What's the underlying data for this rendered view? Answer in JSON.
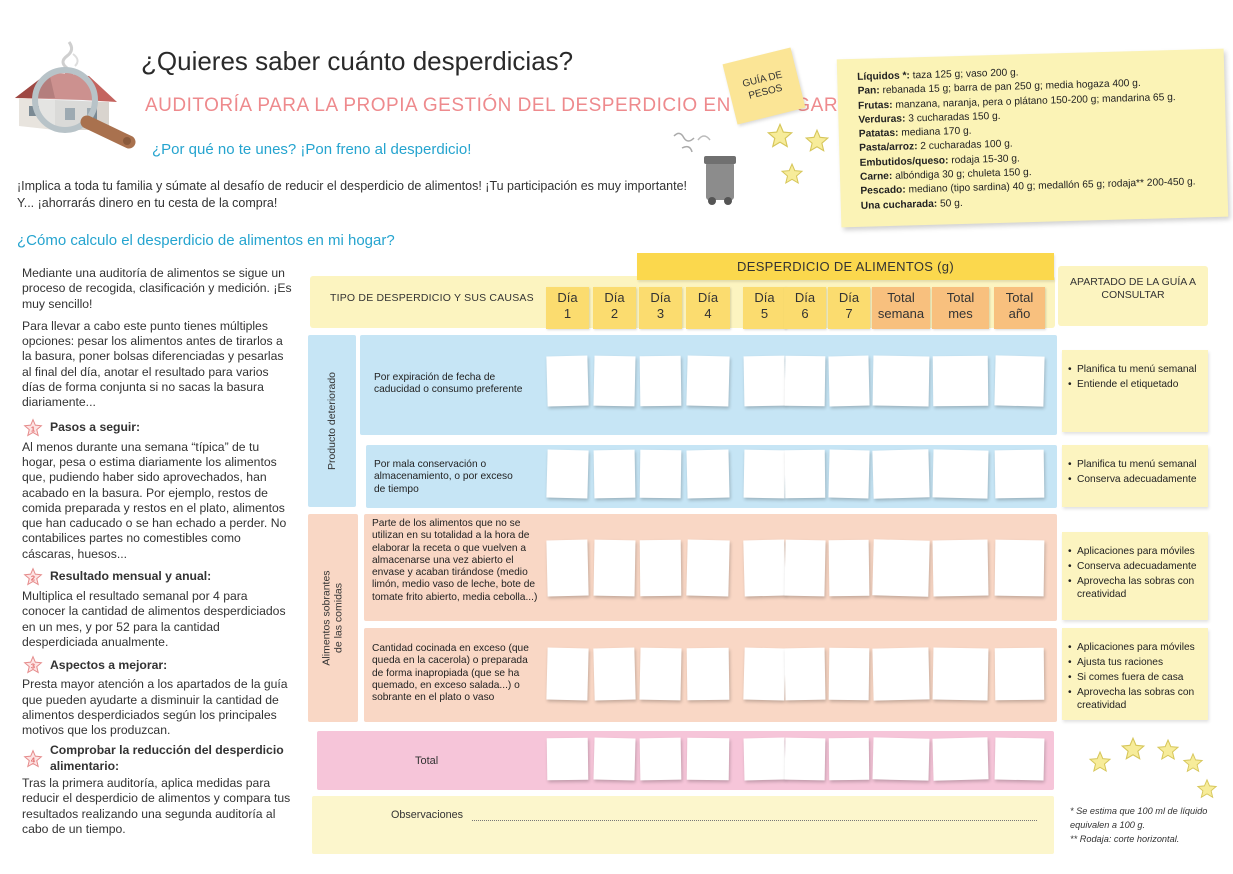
{
  "header": {
    "title": "¿Quieres saber cuánto desperdicias?",
    "subtitle": "AUDITORÍA PARA LA PROPIA GESTIÓN DEL DESPERDICIO EN EL HOGAR",
    "why": "¿Por qué no te unes? ¡Pon freno al desperdicio!",
    "intro_line1": "¡Implica a toda tu familia y súmate al desafío de reducir el desperdicio de alimentos! ¡Tu participación es muy importante!",
    "intro_line2": "Y... ¡ahorrarás dinero en tu cesta de la compra!",
    "how": "¿Cómo calculo el desperdicio de alimentos en mi hogar?"
  },
  "guia_tag": {
    "line1": "GUÍA DE",
    "line2": "PESOS"
  },
  "pesos": [
    {
      "label": "Líquidos *:",
      "text": " taza 125 g; vaso 200 g."
    },
    {
      "label": "Pan:",
      "text": " rebanada 15 g; barra de pan 250 g; media hogaza 400 g."
    },
    {
      "label": "Frutas:",
      "text": " manzana, naranja, pera o plátano 150-200 g; mandarina 65 g."
    },
    {
      "label": "Verduras:",
      "text": " 3 cucharadas 150 g."
    },
    {
      "label": "Patatas:",
      "text": " mediana 170 g."
    },
    {
      "label": "Pasta/arroz:",
      "text": " 2 cucharadas 100 g."
    },
    {
      "label": "Embutidos/queso:",
      "text": " rodaja 15-30 g."
    },
    {
      "label": "Carne:",
      "text": " albóndiga 30 g; chuleta 150 g."
    },
    {
      "label": "Pescado:",
      "text": " mediano (tipo sardina) 40 g; medallón 65 g; rodaja** 200-450 g."
    },
    {
      "label": "Una cucharada:",
      "text": " 50 g."
    }
  ],
  "left": {
    "p1": "Mediante una auditoría de alimentos se sigue un proceso de recogida, clasificación y medición. ¡Es muy sencillo!",
    "p2": "Para llevar a cabo este punto tienes múltiples opciones: pesar los alimentos antes de tirarlos a la basura, poner bolsas diferenciadas y pesarlas al final del día, anotar el resultado para varios días de forma conjunta si no sacas la basura diariamente...",
    "steps": [
      {
        "num": "1",
        "title": "Pasos a seguir:",
        "text": "Al menos durante una semana “típica” de tu hogar, pesa o estima diariamente los alimentos que, pudiendo haber sido aprovechados, han acabado en la basura. Por ejemplo, restos de comida preparada y restos en el plato, alimentos que han caducado o se han echado a perder. No contabilices partes no comestibles como cáscaras, huesos..."
      },
      {
        "num": "2",
        "title": "Resultado mensual y anual:",
        "text": "Multiplica el resultado semanal por 4 para conocer la cantidad de alimentos desperdiciados en un mes, y por 52 para la cantidad desperdiciada anualmente."
      },
      {
        "num": "3",
        "title": "Aspectos a mejorar:",
        "text": "Presta mayor atención a los apartados de la guía que pueden ayudarte a disminuir la cantidad de alimentos desperdiciados según los principales motivos que los produzcan."
      },
      {
        "num": "4",
        "title": "Comprobar la reducción del desperdicio alimentario:",
        "text": "Tras la primera auditoría, aplica medidas para reducir el desperdicio de alimentos y compara tus resultados realizando una segunda auditoría al cabo de un tiempo."
      }
    ]
  },
  "table": {
    "banner": "DESPERDICIO DE ALIMENTOS  (g)",
    "tipo_header": "TIPO DE DESPERDICIO Y SUS CAUSAS",
    "apartado_header": "APARTADO DE LA GUÍA A CONSULTAR",
    "columns": [
      {
        "l1": "Día",
        "l2": "1"
      },
      {
        "l1": "Día",
        "l2": "2"
      },
      {
        "l1": "Día",
        "l2": "3"
      },
      {
        "l1": "Día",
        "l2": "4"
      },
      {
        "l1": "Día",
        "l2": "5"
      },
      {
        "l1": "Día",
        "l2": "6"
      },
      {
        "l1": "Día",
        "l2": "7"
      },
      {
        "l1": "Total",
        "l2": "semana"
      },
      {
        "l1": "Total",
        "l2": "mes"
      },
      {
        "l1": "Total",
        "l2": "año"
      }
    ],
    "group1": "Producto deteriorado",
    "group2_l1": "Alimentos sobrantes",
    "group2_l2": "de las comidas",
    "rows": [
      {
        "text": "Por expiración de fecha de caducidad o consumo preferente",
        "tips": [
          "Planifica tu menú semanal",
          "Entiende el etiquetado"
        ]
      },
      {
        "text": "Por mala conservación o almacenamiento, o por exceso de tiempo",
        "tips": [
          "Planifica tu menú semanal",
          "Conserva adecuadamente"
        ]
      },
      {
        "text": "Parte de los alimentos que no se utilizan en su totalidad a la hora de elaborar la receta o que vuelven a almacenarse una vez abierto el envase y acaban tirándose (medio limón, medio vaso de leche, bote de tomate frito abierto, media cebolla...)",
        "tips": [
          "Aplicaciones para móviles",
          "Conserva adecuadamente",
          "Aprovecha las sobras con creatividad"
        ]
      },
      {
        "text": "Cantidad cocinada en exceso (que queda en la cacerola) o preparada de forma inapropiada (que se ha quemado, en exceso salada...) o sobrante en el plato o vaso",
        "tips": [
          "Aplicaciones para móviles",
          "Ajusta tus raciones",
          "Si comes fuera de casa",
          "Aprovecha las sobras con creatividad"
        ]
      }
    ],
    "total_label": "Total",
    "observaciones_label": "Observaciones"
  },
  "footnotes": {
    "f1": "* Se estima que 100 ml de líquido equivalen a 100 g.",
    "f2": "** Rodaja: corte horizontal."
  }
}
